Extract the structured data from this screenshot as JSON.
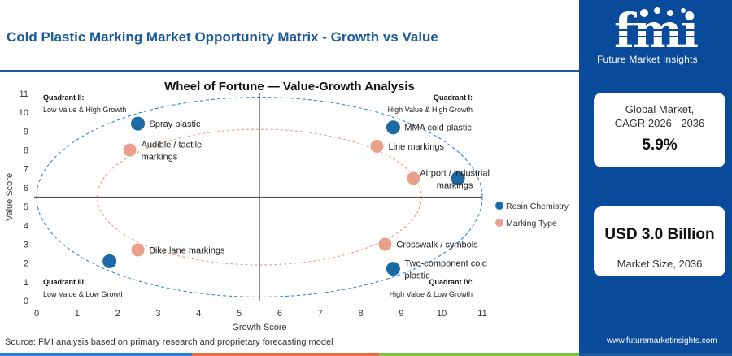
{
  "page": {
    "title": "Cold Plastic Marking Market Opportunity Matrix - Growth vs Value",
    "source": "Source: FMI analysis based on primary research and proprietary forecasting model"
  },
  "brand": {
    "logo_text": "fmi",
    "name": "Future Market Insights",
    "website": "www.futuremarketinsights.com",
    "logo_icon": "fmi-logo-icon"
  },
  "cards": {
    "cagr_label": "Global Market,\nCAGR 2026 - 2036",
    "cagr_value": "5.9%",
    "size_value": "USD 3.0 Billion",
    "size_label": "Market Size, 2036"
  },
  "colors": {
    "brand_blue": "#1a5a9e",
    "sidebar_blue": "#0a4a9a",
    "resin": "#1b6aa5",
    "marking": "#e8a08c",
    "footer": [
      "#2a7fd0",
      "#ee6a3a",
      "#7ec442",
      "#1a5a9e"
    ]
  },
  "chart_data": {
    "type": "scatter",
    "title": "Wheel of Fortune — Value-Growth Analysis",
    "xlabel": "Growth Score",
    "ylabel": "Value Score",
    "xlim": [
      0,
      11
    ],
    "ylim": [
      0,
      11
    ],
    "xticks": [
      0,
      1,
      2,
      3,
      4,
      5,
      6,
      7,
      8,
      9,
      10,
      11
    ],
    "yticks": [
      0,
      1,
      2,
      3,
      4,
      5,
      6,
      7,
      8,
      9,
      10,
      11
    ],
    "grid": false,
    "divider_x": 5.5,
    "divider_y": 5.5,
    "legend_position": "right",
    "quadrants": [
      {
        "title": "Quadrant II:",
        "subtitle": "Low Value & High Growth",
        "corner": "top-left"
      },
      {
        "title": "Quadrant I:",
        "subtitle": "High Value & High Growth",
        "corner": "top-right"
      },
      {
        "title": "Quadrant III:",
        "subtitle": "Low Value & Low Growth",
        "corner": "bottom-left"
      },
      {
        "title": "Quadrant IV:",
        "subtitle": "High Value & Low Growth",
        "corner": "bottom-right"
      }
    ],
    "series": [
      {
        "name": "Resin Chemistry",
        "color": "#1b6aa5",
        "points": [
          {
            "label": "Spray plastic",
            "x": 2.5,
            "y": 9.4
          },
          {
            "label": "MMA cold plastic",
            "x": 8.8,
            "y": 9.2
          },
          {
            "label": "Airport / industrial markings",
            "x": 10.4,
            "y": 6.5
          },
          {
            "label": "Two-component cold plastic",
            "x": 8.8,
            "y": 1.7
          },
          {
            "label": "",
            "x": 1.8,
            "y": 2.1
          }
        ]
      },
      {
        "name": "Marking Type",
        "color": "#e8a08c",
        "points": [
          {
            "label": "Audible / tactile markings",
            "x": 2.3,
            "y": 8.0
          },
          {
            "label": "Line markings",
            "x": 8.4,
            "y": 8.2
          },
          {
            "label": "",
            "x": 9.3,
            "y": 6.5
          },
          {
            "label": "Crosswalk / symbols",
            "x": 8.6,
            "y": 3.0
          },
          {
            "label": "Bike lane markings",
            "x": 2.5,
            "y": 2.7
          }
        ]
      }
    ],
    "outer_ellipse": {
      "cx": 5.5,
      "cy": 5.5,
      "rx": 5.5,
      "ry": 5.3
    },
    "inner_ellipse": {
      "cx": 5.5,
      "cy": 5.5,
      "rx": 4.0,
      "ry": 3.6
    }
  }
}
